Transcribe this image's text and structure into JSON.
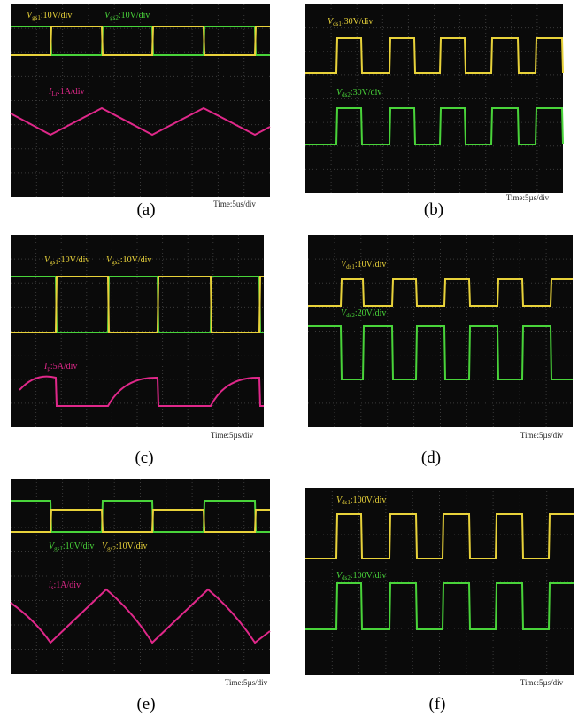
{
  "panels": [
    {
      "caption": "(a)",
      "time": "Time:5us/div",
      "labels": [
        {
          "symbol": "V",
          "sub": "gs1",
          "scale": ":10V/div"
        },
        {
          "symbol": "V",
          "sub": "gs2",
          "scale": ":10V/div"
        },
        {
          "symbol": "I",
          "sub": "Lr",
          "scale": ":1A/div"
        }
      ]
    },
    {
      "caption": "(b)",
      "time": "Time:5µs/div",
      "labels": [
        {
          "symbol": "V",
          "sub": "ds1",
          "scale": ":30V/div"
        },
        {
          "symbol": "V",
          "sub": "ds2",
          "scale": ":30V/div"
        }
      ]
    },
    {
      "caption": "(c)",
      "time": "Time:5µs/div",
      "labels": [
        {
          "symbol": "V",
          "sub": "gs1",
          "scale": ":10V/div"
        },
        {
          "symbol": "V",
          "sub": "gs2",
          "scale": ":10V/div"
        },
        {
          "symbol": "I",
          "sub": "p",
          "scale": ":5A/div"
        }
      ]
    },
    {
      "caption": "(d)",
      "time": "Time:5µs/div",
      "labels": [
        {
          "symbol": "V",
          "sub": "ds1",
          "scale": ":10V/div"
        },
        {
          "symbol": "V",
          "sub": "ds2",
          "scale": ":20V/div"
        }
      ]
    },
    {
      "caption": "(e)",
      "time": "Time:5µs/div",
      "labels": [
        {
          "symbol": "V",
          "sub": "gs1",
          "scale": ":10V/div"
        },
        {
          "symbol": "V",
          "sub": "gs2",
          "scale": ":10V/div"
        },
        {
          "symbol": "i",
          "sub": "s",
          "scale": ":1A/div"
        }
      ]
    },
    {
      "caption": "(f)",
      "time": "Time:5µs/div",
      "labels": [
        {
          "symbol": "V",
          "sub": "ds1",
          "scale": ":100V/div"
        },
        {
          "symbol": "V",
          "sub": "ds2",
          "scale": ":100V/div"
        }
      ]
    }
  ]
}
